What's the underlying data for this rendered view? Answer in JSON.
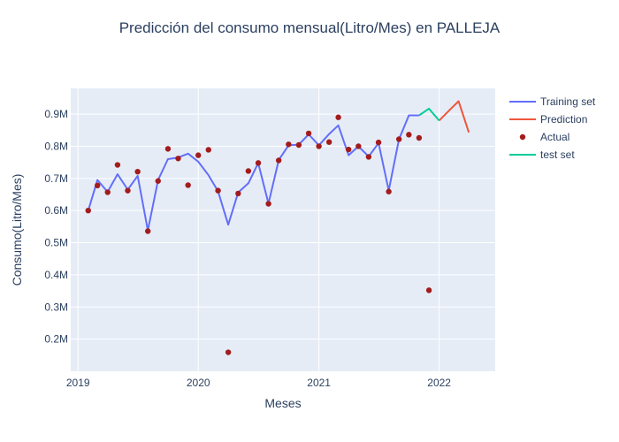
{
  "chart_data": {
    "type": "line",
    "title": "Predicción del consumo mensual(Litro/Mes) en PALLEJA",
    "xlabel": "Meses",
    "ylabel": "Consumo(Litro/Mes)",
    "x_ticks": [
      "2019",
      "2020",
      "2021",
      "2022"
    ],
    "y_ticks": [
      "0.2M",
      "0.3M",
      "0.4M",
      "0.5M",
      "0.6M",
      "0.7M",
      "0.8M",
      "0.9M"
    ],
    "ylim": [
      100000,
      980000
    ],
    "xlim": [
      "2018-12-10",
      "2022-06-20"
    ],
    "grid": true,
    "legend_position": "top-right",
    "series": [
      {
        "name": "Training set",
        "type": "line",
        "color": "#636efa",
        "points": [
          [
            "2019-02-01",
            600000
          ],
          [
            "2019-03-01",
            695000
          ],
          [
            "2019-04-01",
            658000
          ],
          [
            "2019-05-01",
            713000
          ],
          [
            "2019-06-01",
            665000
          ],
          [
            "2019-07-01",
            708000
          ],
          [
            "2019-08-01",
            538000
          ],
          [
            "2019-09-01",
            695000
          ],
          [
            "2019-10-01",
            760000
          ],
          [
            "2019-11-01",
            765000
          ],
          [
            "2019-12-01",
            777000
          ],
          [
            "2020-01-01",
            752000
          ],
          [
            "2020-02-01",
            710000
          ],
          [
            "2020-03-01",
            660000
          ],
          [
            "2020-04-01",
            556000
          ],
          [
            "2020-05-01",
            656000
          ],
          [
            "2020-06-01",
            685000
          ],
          [
            "2020-07-01",
            748000
          ],
          [
            "2020-08-01",
            622000
          ],
          [
            "2020-09-01",
            757000
          ],
          [
            "2020-10-01",
            803000
          ],
          [
            "2020-11-01",
            805000
          ],
          [
            "2020-12-01",
            837000
          ],
          [
            "2021-01-01",
            803000
          ],
          [
            "2021-02-01",
            838000
          ],
          [
            "2021-03-01",
            865000
          ],
          [
            "2021-04-01",
            772000
          ],
          [
            "2021-05-01",
            800000
          ],
          [
            "2021-06-01",
            768000
          ],
          [
            "2021-07-01",
            810000
          ],
          [
            "2021-08-01",
            662000
          ],
          [
            "2021-09-01",
            822000
          ],
          [
            "2021-10-01",
            896000
          ],
          [
            "2021-11-01",
            896000
          ]
        ]
      },
      {
        "name": "Prediction",
        "type": "line",
        "color": "#ef553b",
        "points": [
          [
            "2022-01-01",
            880000
          ],
          [
            "2022-02-01",
            912000
          ],
          [
            "2022-03-01",
            940000
          ],
          [
            "2022-04-01",
            843000
          ]
        ]
      },
      {
        "name": "Actual",
        "type": "scatter",
        "color": "#a31c1c",
        "points": [
          [
            "2019-02-01",
            600000
          ],
          [
            "2019-03-01",
            678000
          ],
          [
            "2019-04-01",
            657000
          ],
          [
            "2019-05-01",
            742000
          ],
          [
            "2019-06-01",
            662000
          ],
          [
            "2019-07-01",
            721000
          ],
          [
            "2019-08-01",
            536000
          ],
          [
            "2019-09-01",
            692000
          ],
          [
            "2019-10-01",
            792000
          ],
          [
            "2019-11-01",
            762000
          ],
          [
            "2019-12-01",
            679000
          ],
          [
            "2020-01-01",
            772000
          ],
          [
            "2020-02-01",
            789000
          ],
          [
            "2020-03-01",
            662000
          ],
          [
            "2020-04-01",
            159000
          ],
          [
            "2020-05-01",
            653000
          ],
          [
            "2020-06-01",
            723000
          ],
          [
            "2020-07-01",
            748000
          ],
          [
            "2020-08-01",
            621000
          ],
          [
            "2020-09-01",
            756000
          ],
          [
            "2020-10-01",
            806000
          ],
          [
            "2020-11-01",
            804000
          ],
          [
            "2020-12-01",
            840000
          ],
          [
            "2021-01-01",
            800000
          ],
          [
            "2021-02-01",
            813000
          ],
          [
            "2021-03-01",
            890000
          ],
          [
            "2021-04-01",
            790000
          ],
          [
            "2021-05-01",
            800000
          ],
          [
            "2021-06-01",
            767000
          ],
          [
            "2021-07-01",
            812000
          ],
          [
            "2021-08-01",
            659000
          ],
          [
            "2021-09-01",
            822000
          ],
          [
            "2021-10-01",
            836000
          ],
          [
            "2021-11-01",
            826000
          ],
          [
            "2021-12-01",
            352000
          ]
        ]
      },
      {
        "name": "test set",
        "type": "line",
        "color": "#00cc96",
        "points": [
          [
            "2021-11-01",
            896000
          ],
          [
            "2021-12-01",
            917000
          ],
          [
            "2022-01-01",
            880000
          ]
        ]
      }
    ]
  }
}
